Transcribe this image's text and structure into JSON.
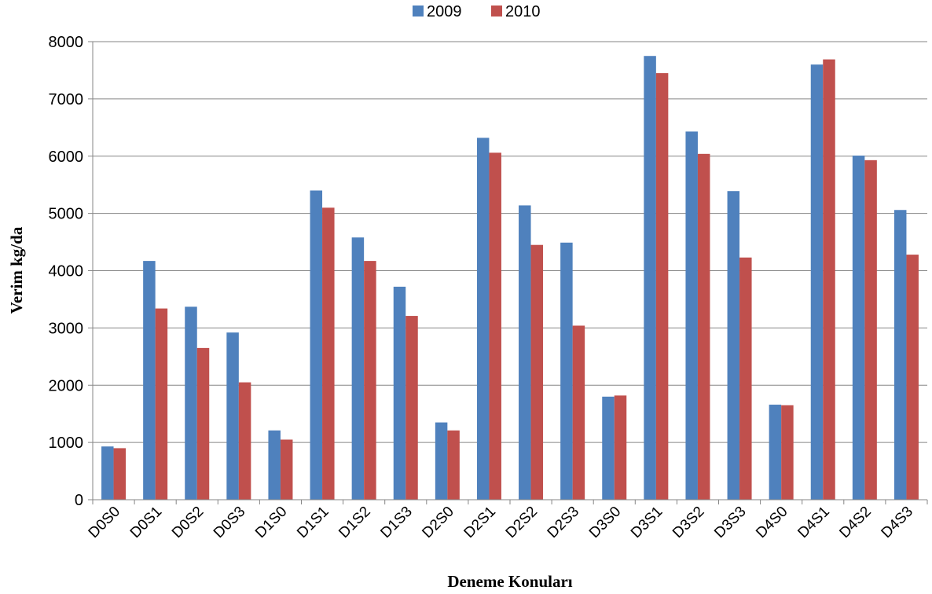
{
  "chart_data": {
    "type": "bar",
    "title": "",
    "xlabel": "Deneme Konuları",
    "ylabel": "Verim kg/da",
    "ylim": [
      0,
      8000
    ],
    "yticks": [
      0,
      1000,
      2000,
      3000,
      4000,
      5000,
      6000,
      7000,
      8000
    ],
    "grid": "horizontal",
    "legend_position": "top-center",
    "categories": [
      "D0S0",
      "D0S1",
      "D0S2",
      "D0S3",
      "D1S0",
      "D1S1",
      "D1S2",
      "D1S3",
      "D2S0",
      "D2S1",
      "D2S2",
      "D2S3",
      "D3S0",
      "D3S1",
      "D3S2",
      "D3S3",
      "D4S0",
      "D4S1",
      "D4S2",
      "D4S3"
    ],
    "series": [
      {
        "name": "2009",
        "color": "#4f81bd",
        "values": [
          930,
          4170,
          3370,
          2920,
          1210,
          5400,
          4580,
          3720,
          1350,
          6320,
          5140,
          4490,
          1800,
          7750,
          6430,
          5390,
          1660,
          7600,
          6010,
          5060
        ]
      },
      {
        "name": "2010",
        "color": "#c0504d",
        "values": [
          900,
          3340,
          2650,
          2050,
          1050,
          5100,
          4170,
          3210,
          1210,
          6060,
          4450,
          3040,
          1820,
          7450,
          6040,
          4230,
          1650,
          7690,
          5930,
          4280
        ]
      }
    ]
  }
}
